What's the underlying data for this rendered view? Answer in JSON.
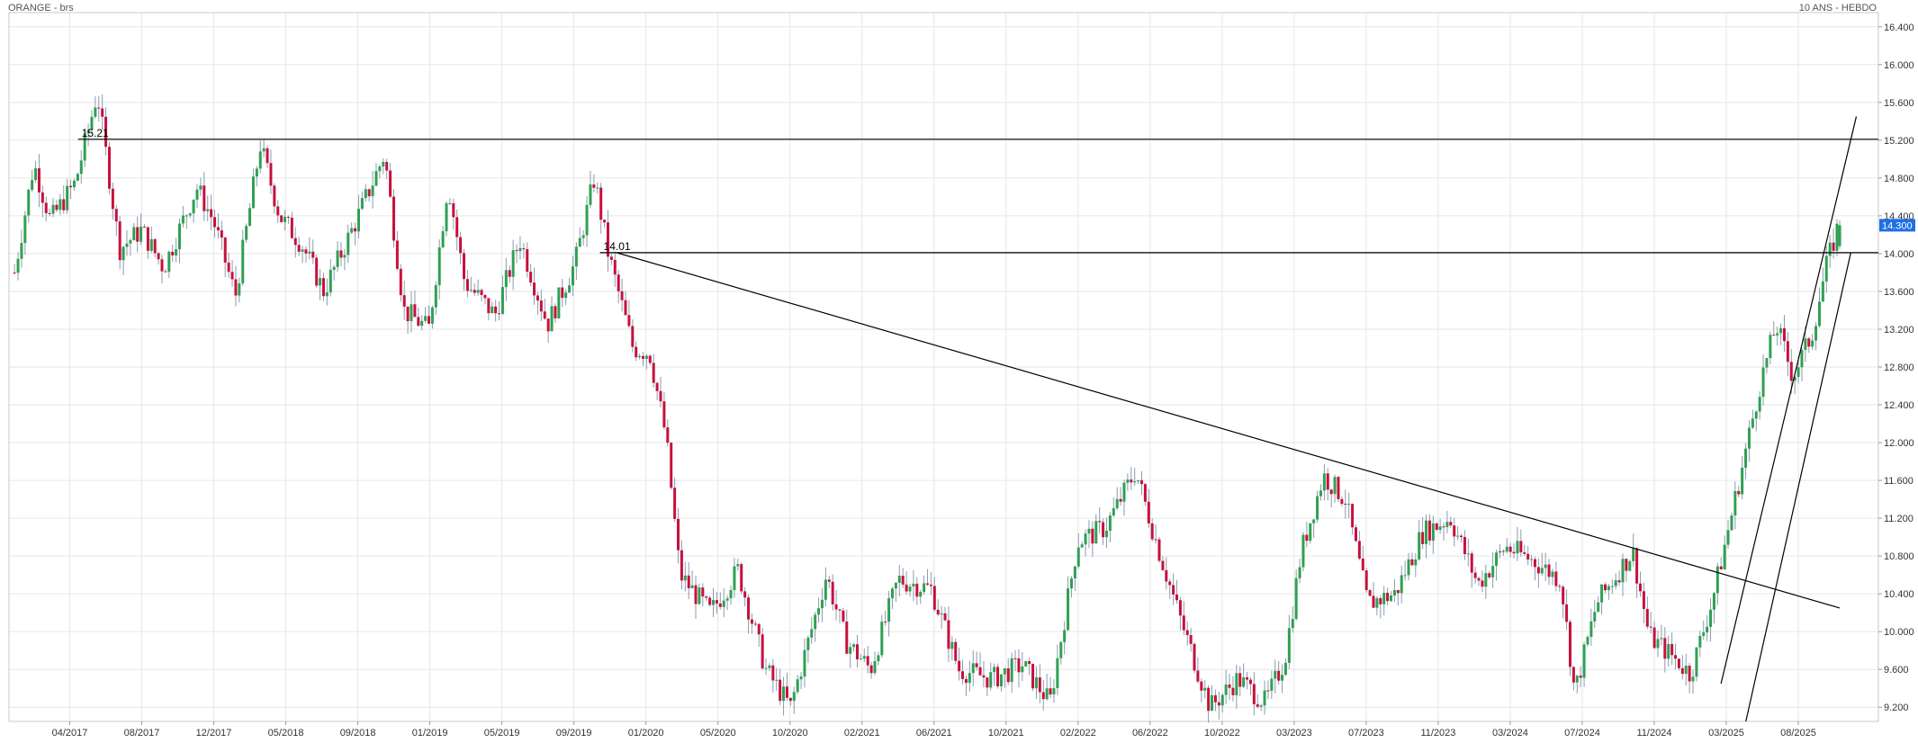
{
  "header": {
    "left": "ORANGE - brs",
    "right": "10 ANS - HEBDO"
  },
  "chart_data": {
    "type": "candlestick",
    "title": "ORANGE - brs",
    "period_label": "10 ANS - HEBDO",
    "ylim": [
      9.05,
      16.55
    ],
    "y_ticks": [
      "9.200",
      "9.600",
      "10.000",
      "10.400",
      "10.800",
      "11.200",
      "11.600",
      "12.000",
      "12.400",
      "12.800",
      "13.200",
      "13.600",
      "14.000",
      "14.400",
      "14.800",
      "15.200",
      "15.600",
      "16.000",
      "16.400"
    ],
    "x_ticks": [
      "04/2017",
      "08/2017",
      "12/2017",
      "05/2018",
      "09/2018",
      "01/2019",
      "05/2019",
      "09/2019",
      "01/2020",
      "05/2020",
      "10/2020",
      "02/2021",
      "06/2021",
      "10/2021",
      "02/2022",
      "06/2022",
      "10/2022",
      "03/2023",
      "07/2023",
      "11/2023",
      "03/2024",
      "07/2024",
      "11/2024",
      "03/2025",
      "08/2025"
    ],
    "last_price": "14.300",
    "last_price_value": 14.3,
    "up_color": "#2fa052",
    "down_color": "#c8103c",
    "tag_color": "#1f6fe5",
    "grid": true,
    "levels": [
      {
        "label": "15.21",
        "value": 15.21
      },
      {
        "label": "14.01",
        "value": 14.01
      }
    ],
    "keypoints": [
      {
        "t": 0.0,
        "v": 13.8
      },
      {
        "t": 0.7,
        "v": 14.95
      },
      {
        "t": 1.3,
        "v": 14.35
      },
      {
        "t": 2.2,
        "v": 14.75
      },
      {
        "t": 3.0,
        "v": 15.7
      },
      {
        "t": 3.8,
        "v": 14.05
      },
      {
        "t": 4.6,
        "v": 14.25
      },
      {
        "t": 5.4,
        "v": 13.85
      },
      {
        "t": 6.6,
        "v": 14.7
      },
      {
        "t": 7.2,
        "v": 14.35
      },
      {
        "t": 8.0,
        "v": 13.55
      },
      {
        "t": 8.9,
        "v": 15.15
      },
      {
        "t": 9.6,
        "v": 14.4
      },
      {
        "t": 10.4,
        "v": 14.1
      },
      {
        "t": 11.2,
        "v": 13.6
      },
      {
        "t": 12.3,
        "v": 14.3
      },
      {
        "t": 13.4,
        "v": 15.05
      },
      {
        "t": 14.1,
        "v": 13.4
      },
      {
        "t": 15.0,
        "v": 13.2
      },
      {
        "t": 15.7,
        "v": 14.75
      },
      {
        "t": 16.3,
        "v": 13.7
      },
      {
        "t": 17.4,
        "v": 13.35
      },
      {
        "t": 18.3,
        "v": 14.15
      },
      {
        "t": 19.3,
        "v": 13.25
      },
      {
        "t": 20.3,
        "v": 13.9
      },
      {
        "t": 21.0,
        "v": 14.8
      },
      {
        "t": 21.5,
        "v": 14.0
      },
      {
        "t": 22.4,
        "v": 13.0
      },
      {
        "t": 23.0,
        "v": 12.95
      },
      {
        "t": 23.6,
        "v": 12.05
      },
      {
        "t": 24.1,
        "v": 10.6
      },
      {
        "t": 25.2,
        "v": 10.2
      },
      {
        "t": 26.2,
        "v": 10.65
      },
      {
        "t": 27.2,
        "v": 9.6
      },
      {
        "t": 28.1,
        "v": 9.2
      },
      {
        "t": 29.4,
        "v": 10.6
      },
      {
        "t": 30.1,
        "v": 9.9
      },
      {
        "t": 31.0,
        "v": 9.6
      },
      {
        "t": 32.0,
        "v": 10.55
      },
      {
        "t": 33.2,
        "v": 10.45
      },
      {
        "t": 34.2,
        "v": 9.6
      },
      {
        "t": 35.4,
        "v": 9.5
      },
      {
        "t": 36.5,
        "v": 9.65
      },
      {
        "t": 37.5,
        "v": 9.25
      },
      {
        "t": 38.5,
        "v": 10.95
      },
      {
        "t": 39.5,
        "v": 11.1
      },
      {
        "t": 40.6,
        "v": 11.7
      },
      {
        "t": 41.4,
        "v": 10.9
      },
      {
        "t": 42.2,
        "v": 10.15
      },
      {
        "t": 43.3,
        "v": 9.2
      },
      {
        "t": 44.3,
        "v": 9.5
      },
      {
        "t": 45.3,
        "v": 9.25
      },
      {
        "t": 46.0,
        "v": 9.7
      },
      {
        "t": 46.6,
        "v": 10.85
      },
      {
        "t": 47.4,
        "v": 11.65
      },
      {
        "t": 48.2,
        "v": 11.4
      },
      {
        "t": 49.0,
        "v": 10.3
      },
      {
        "t": 50.0,
        "v": 10.4
      },
      {
        "t": 51.0,
        "v": 11.05
      },
      {
        "t": 52.0,
        "v": 11.2
      },
      {
        "t": 53.0,
        "v": 10.5
      },
      {
        "t": 54.0,
        "v": 10.9
      },
      {
        "t": 55.0,
        "v": 10.75
      },
      {
        "t": 56.0,
        "v": 10.55
      },
      {
        "t": 56.5,
        "v": 9.35
      },
      {
        "t": 57.3,
        "v": 10.3
      },
      {
        "t": 58.6,
        "v": 10.85
      },
      {
        "t": 59.2,
        "v": 9.95
      },
      {
        "t": 60.0,
        "v": 9.75
      },
      {
        "t": 60.7,
        "v": 9.55
      },
      {
        "t": 61.5,
        "v": 10.35
      },
      {
        "t": 62.5,
        "v": 11.65
      },
      {
        "t": 63.2,
        "v": 12.6
      },
      {
        "t": 63.8,
        "v": 13.25
      },
      {
        "t": 64.4,
        "v": 12.7
      },
      {
        "t": 65.1,
        "v": 13.15
      },
      {
        "t": 65.6,
        "v": 13.85
      },
      {
        "t": 66.0,
        "v": 14.25
      }
    ],
    "x_range": [
      -0.2,
      67.5
    ]
  }
}
